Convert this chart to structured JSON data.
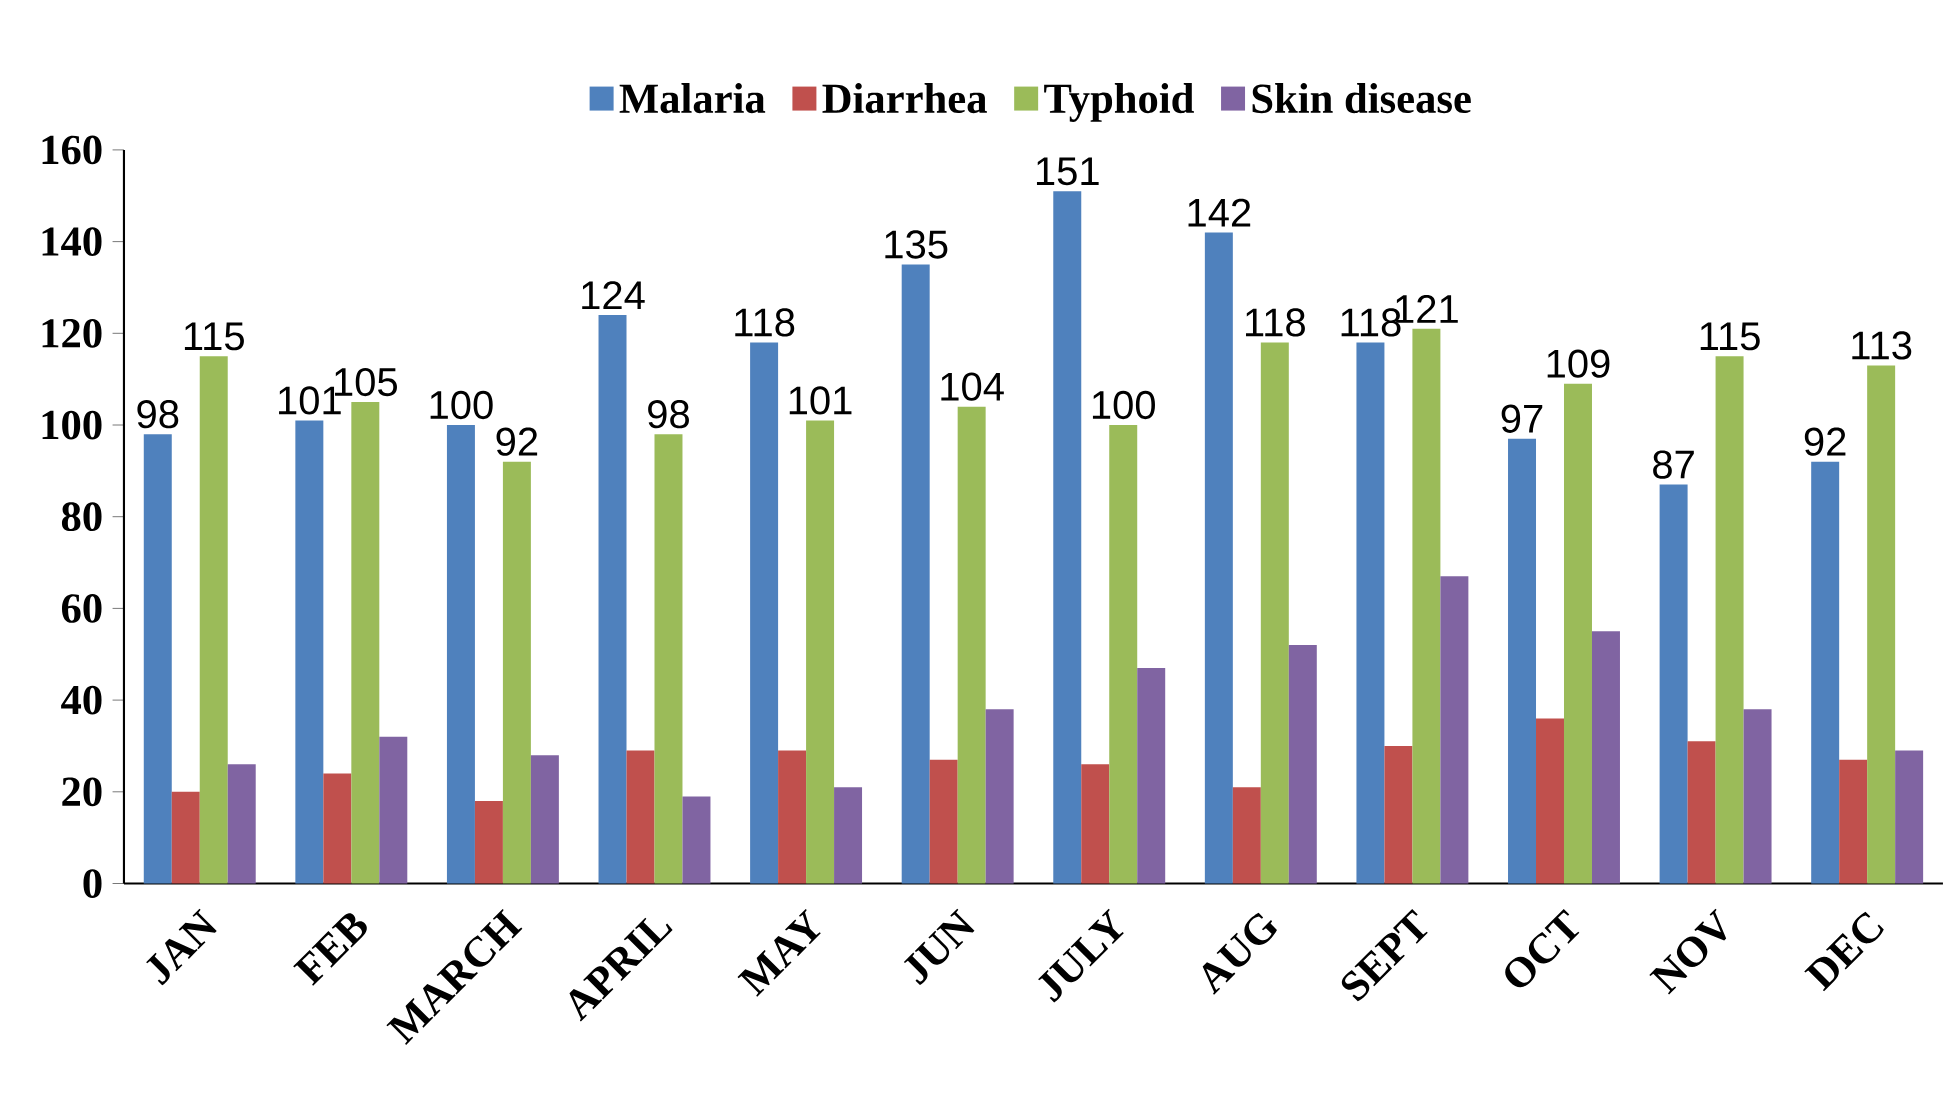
{
  "chart_data": {
    "type": "bar",
    "categories": [
      "JAN",
      "FEB",
      "MARCH",
      "APRIL",
      "MAY",
      "JUN",
      "JULY",
      "AUG",
      "SEPT",
      "OCT",
      "NOV",
      "DEC"
    ],
    "series": [
      {
        "name": "Malaria",
        "color": "#4f81bd",
        "values": [
          98,
          101,
          100,
          124,
          118,
          135,
          151,
          142,
          118,
          97,
          87,
          92
        ],
        "value_labels": [
          "98",
          "101",
          "100",
          "124",
          "118",
          "135",
          "151",
          "142",
          "118",
          "97",
          "87",
          "92"
        ]
      },
      {
        "name": "Diarrhea",
        "color": "#c0504d",
        "values": [
          20,
          24,
          18,
          29,
          29,
          27,
          26,
          21,
          30,
          36,
          31,
          27
        ]
      },
      {
        "name": "Typhoid",
        "color": "#9bbb59",
        "values": [
          115,
          105,
          92,
          98,
          101,
          104,
          100,
          118,
          121,
          109,
          115,
          113
        ],
        "value_labels": [
          "115",
          "105",
          "92",
          "98",
          "101",
          "104",
          "100",
          "118",
          "121",
          "109",
          "115",
          "113"
        ]
      },
      {
        "name": "Skin disease",
        "color": "#8064a2",
        "values": [
          26,
          32,
          28,
          19,
          21,
          38,
          47,
          52,
          67,
          55,
          38,
          29
        ]
      }
    ],
    "ylim": [
      0,
      160
    ],
    "yticks": [
      0,
      20,
      40,
      60,
      80,
      100,
      120,
      140,
      160
    ],
    "legend": "top"
  }
}
